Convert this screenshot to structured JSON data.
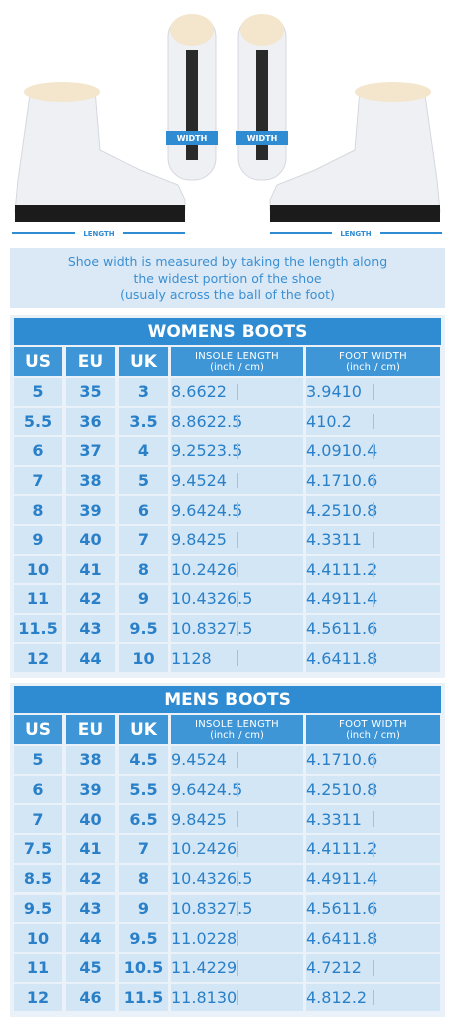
{
  "illustration": {
    "width_labels": [
      "WIDTH",
      "WIDTH"
    ],
    "length_labels": [
      "LENGTH",
      "LENGTH"
    ]
  },
  "note": [
    "Shoe width is measured by taking the length along",
    "the widest portion of the shoe",
    "(usualy across the ball of the foot)"
  ],
  "womens": {
    "title": "WOMENS BOOTS",
    "header": [
      "US",
      "EU",
      "UK",
      {
        "title": "INSOLE LENGTH",
        "unit": "(inch / cm)"
      },
      {
        "title": "FOOT WIDTH",
        "unit": "(inch / cm)"
      }
    ],
    "rows": [
      [
        "5",
        "35",
        "3",
        "8.66",
        "22",
        "3.94",
        "10"
      ],
      [
        "5.5",
        "36",
        "3.5",
        "8.86",
        "22.5",
        "4",
        "10.2"
      ],
      [
        "6",
        "37",
        "4",
        "9.25",
        "23.5",
        "4.09",
        "10.4"
      ],
      [
        "7",
        "38",
        "5",
        "9.45",
        "24",
        "4.17",
        "10.6"
      ],
      [
        "8",
        "39",
        "6",
        "9.64",
        "24.5",
        "4.25",
        "10.8"
      ],
      [
        "9",
        "40",
        "7",
        "9.84",
        "25",
        "4.33",
        "11"
      ],
      [
        "10",
        "41",
        "8",
        "10.24",
        "26",
        "4.41",
        "11.2"
      ],
      [
        "11",
        "42",
        "9",
        "10.43",
        "26.5",
        "4.49",
        "11.4"
      ],
      [
        "11.5",
        "43",
        "9.5",
        "10.83",
        "27.5",
        "4.56",
        "11.6"
      ],
      [
        "12",
        "44",
        "10",
        "11",
        "28",
        "4.64",
        "11.8"
      ]
    ]
  },
  "mens": {
    "title": "MENS BOOTS",
    "header": [
      "US",
      "EU",
      "UK",
      {
        "title": "INSOLE LENGTH",
        "unit": "(inch / cm)"
      },
      {
        "title": "FOOT WIDTH",
        "unit": "(inch / cm)"
      }
    ],
    "rows": [
      [
        "5",
        "38",
        "4.5",
        "9.45",
        "24",
        "4.17",
        "10.6"
      ],
      [
        "6",
        "39",
        "5.5",
        "9.64",
        "24.5",
        "4.25",
        "10.8"
      ],
      [
        "7",
        "40",
        "6.5",
        "9.84",
        "25",
        "4.33",
        "11"
      ],
      [
        "7.5",
        "41",
        "7",
        "10.24",
        "26",
        "4.41",
        "11.2"
      ],
      [
        "8.5",
        "42",
        "8",
        "10.43",
        "26.5",
        "4.49",
        "11.4"
      ],
      [
        "9.5",
        "43",
        "9",
        "10.83",
        "27.5",
        "4.56",
        "11.6"
      ],
      [
        "10",
        "44",
        "9.5",
        "11.02",
        "28",
        "4.64",
        "11.8"
      ],
      [
        "11",
        "45",
        "10.5",
        "11.42",
        "29",
        "4.72",
        "12"
      ],
      [
        "12",
        "46",
        "11.5",
        "11.81",
        "30",
        "4.8",
        "12.2"
      ]
    ]
  }
}
